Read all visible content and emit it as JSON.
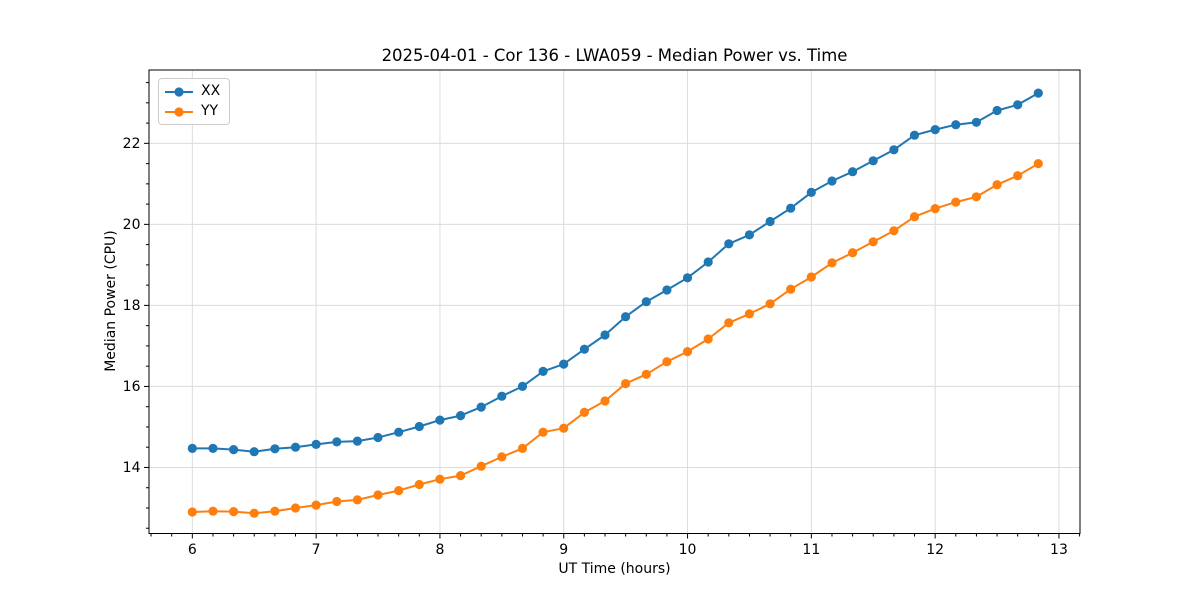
{
  "chart_data": {
    "type": "line",
    "title": "2025-04-01 - Cor 136 - LWA059 - Median Power vs. Time",
    "xlabel": "UT Time (hours)",
    "ylabel": "Median Power (CPU)",
    "xlim": [
      5.65,
      13.17
    ],
    "ylim": [
      12.37,
      23.81
    ],
    "x_major_ticks": [
      6,
      7,
      8,
      9,
      10,
      11,
      12,
      13
    ],
    "y_major_ticks": [
      14,
      16,
      18,
      20,
      22
    ],
    "x_minor_step": 0.1666667,
    "y_minor_step": 0.5,
    "grid": true,
    "legend_position": "upper-left",
    "background_color": "#ffffff",
    "grid_color": "#dcdcdc",
    "spine_color": "#000000",
    "marker": "circle",
    "marker_radius": 4.6,
    "line_width": 2,
    "x": [
      6.0,
      6.167,
      6.333,
      6.5,
      6.667,
      6.833,
      7.0,
      7.167,
      7.333,
      7.5,
      7.667,
      7.833,
      8.0,
      8.167,
      8.333,
      8.5,
      8.667,
      8.833,
      9.0,
      9.167,
      9.333,
      9.5,
      9.667,
      9.833,
      10.0,
      10.167,
      10.333,
      10.5,
      10.667,
      10.833,
      11.0,
      11.167,
      11.333,
      11.5,
      11.667,
      11.833,
      12.0,
      12.167,
      12.333,
      12.5,
      12.667,
      12.833
    ],
    "series": [
      {
        "name": "XX",
        "color": "#1f77b4",
        "values": [
          14.47,
          14.47,
          14.44,
          14.39,
          14.46,
          14.5,
          14.57,
          14.63,
          14.65,
          14.74,
          14.87,
          15.01,
          15.17,
          15.28,
          15.49,
          15.76,
          16.0,
          16.37,
          16.55,
          16.92,
          17.27,
          17.72,
          18.09,
          18.38,
          18.68,
          19.07,
          19.52,
          19.74,
          20.07,
          20.4,
          20.79,
          21.07,
          21.3,
          21.57,
          21.84,
          22.2,
          22.34,
          22.46,
          22.52,
          22.81,
          22.95,
          23.24
        ]
      },
      {
        "name": "YY",
        "color": "#ff7f0e",
        "values": [
          12.9,
          12.92,
          12.91,
          12.87,
          12.92,
          13.0,
          13.07,
          13.16,
          13.2,
          13.32,
          13.43,
          13.58,
          13.71,
          13.8,
          14.03,
          14.26,
          14.47,
          14.87,
          14.97,
          15.36,
          15.64,
          16.07,
          16.3,
          16.61,
          16.86,
          17.17,
          17.57,
          17.79,
          18.04,
          18.4,
          18.7,
          19.05,
          19.3,
          19.57,
          19.84,
          20.19,
          20.39,
          20.55,
          20.68,
          20.98,
          21.2,
          21.5
        ]
      }
    ]
  }
}
